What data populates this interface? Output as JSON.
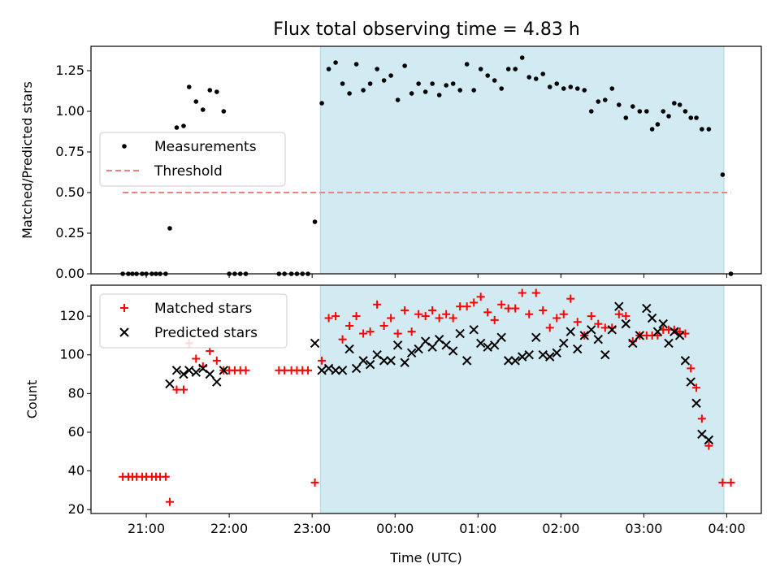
{
  "title": "Flux total observing time = 4.83 h",
  "colors": {
    "highlight": "#add8e6",
    "threshold": "#f08080",
    "measurement": "#000000",
    "matched": "#ff0000",
    "predicted": "#000000"
  },
  "chart_data": [
    {
      "type": "scatter",
      "ylabel": "Matched/Predicted stars",
      "ylim": [
        0,
        1.4
      ],
      "yticks": [
        0,
        0.25,
        0.5,
        0.75,
        1.0,
        1.25
      ],
      "ytick_labels": [
        "0.00",
        "0.25",
        "0.50",
        "0.75",
        "1.00",
        "1.25"
      ],
      "xlim": [
        "20:20",
        "04:25"
      ],
      "highlight_span": [
        "23:06",
        "03:58"
      ],
      "legend": {
        "position": "center-left",
        "entries": [
          {
            "label": "Measurements",
            "marker": "dot"
          },
          {
            "label": "Threshold",
            "marker": "dashed-line"
          }
        ]
      },
      "threshold": {
        "y": 0.5,
        "x_start": "20:43",
        "x_end": "04:03"
      },
      "measurements": [
        [
          "20:43",
          0.0
        ],
        [
          "20:47",
          0.0
        ],
        [
          "20:50",
          0.0
        ],
        [
          "20:53",
          0.0
        ],
        [
          "20:57",
          0.0
        ],
        [
          "21:00",
          0.0
        ],
        [
          "21:04",
          0.0
        ],
        [
          "21:07",
          0.0
        ],
        [
          "21:10",
          0.0
        ],
        [
          "21:14",
          0.0
        ],
        [
          "21:17",
          0.28
        ],
        [
          "21:22",
          0.9
        ],
        [
          "21:27",
          0.91
        ],
        [
          "21:31",
          1.15
        ],
        [
          "21:36",
          1.06
        ],
        [
          "21:41",
          1.01
        ],
        [
          "21:46",
          1.13
        ],
        [
          "21:51",
          1.12
        ],
        [
          "21:56",
          1.0
        ],
        [
          "22:00",
          0.0
        ],
        [
          "22:04",
          0.0
        ],
        [
          "22:08",
          0.0
        ],
        [
          "22:12",
          0.0
        ],
        [
          "22:36",
          0.0
        ],
        [
          "22:40",
          0.0
        ],
        [
          "22:45",
          0.0
        ],
        [
          "22:49",
          0.0
        ],
        [
          "22:53",
          0.0
        ],
        [
          "22:57",
          0.0
        ],
        [
          "23:02",
          0.32
        ],
        [
          "23:07",
          1.05
        ],
        [
          "23:12",
          1.26
        ],
        [
          "23:17",
          1.3
        ],
        [
          "23:22",
          1.17
        ],
        [
          "23:27",
          1.11
        ],
        [
          "23:32",
          1.29
        ],
        [
          "23:37",
          1.13
        ],
        [
          "23:42",
          1.17
        ],
        [
          "23:47",
          1.26
        ],
        [
          "23:52",
          1.19
        ],
        [
          "23:57",
          1.22
        ],
        [
          "00:02",
          1.07
        ],
        [
          "00:07",
          1.28
        ],
        [
          "00:12",
          1.11
        ],
        [
          "00:17",
          1.17
        ],
        [
          "00:22",
          1.12
        ],
        [
          "00:27",
          1.17
        ],
        [
          "00:32",
          1.1
        ],
        [
          "00:37",
          1.16
        ],
        [
          "00:42",
          1.17
        ],
        [
          "00:47",
          1.13
        ],
        [
          "00:52",
          1.29
        ],
        [
          "00:57",
          1.13
        ],
        [
          "01:02",
          1.26
        ],
        [
          "01:07",
          1.22
        ],
        [
          "01:12",
          1.19
        ],
        [
          "01:17",
          1.14
        ],
        [
          "01:22",
          1.26
        ],
        [
          "01:27",
          1.26
        ],
        [
          "01:32",
          1.33
        ],
        [
          "01:37",
          1.21
        ],
        [
          "01:42",
          1.2
        ],
        [
          "01:47",
          1.23
        ],
        [
          "01:52",
          1.15
        ],
        [
          "01:57",
          1.17
        ],
        [
          "02:02",
          1.14
        ],
        [
          "02:07",
          1.15
        ],
        [
          "02:12",
          1.14
        ],
        [
          "02:17",
          1.13
        ],
        [
          "02:22",
          1.0
        ],
        [
          "02:27",
          1.06
        ],
        [
          "02:32",
          1.07
        ],
        [
          "02:37",
          1.14
        ],
        [
          "02:42",
          1.04
        ],
        [
          "02:47",
          0.96
        ],
        [
          "02:52",
          1.03
        ],
        [
          "02:57",
          1.0
        ],
        [
          "03:02",
          1.0
        ],
        [
          "03:06",
          0.89
        ],
        [
          "03:10",
          0.92
        ],
        [
          "03:14",
          1.0
        ],
        [
          "03:18",
          0.97
        ],
        [
          "03:22",
          1.05
        ],
        [
          "03:26",
          1.04
        ],
        [
          "03:30",
          1.0
        ],
        [
          "03:34",
          0.96
        ],
        [
          "03:38",
          0.96
        ],
        [
          "03:42",
          0.89
        ],
        [
          "03:47",
          0.89
        ],
        [
          "03:57",
          0.61
        ],
        [
          "04:03",
          0.0
        ]
      ]
    },
    {
      "type": "scatter",
      "xlabel": "Time (UTC)",
      "ylabel": "Count",
      "ylim": [
        18,
        136
      ],
      "yticks": [
        20,
        40,
        60,
        80,
        100,
        120
      ],
      "ytick_labels": [
        "20",
        "40",
        "60",
        "80",
        "100",
        "120"
      ],
      "xlim": [
        "20:20",
        "04:25"
      ],
      "xticks": [
        "21:00",
        "22:00",
        "23:00",
        "00:00",
        "01:00",
        "02:00",
        "03:00",
        "04:00"
      ],
      "highlight_span": [
        "23:06",
        "03:58"
      ],
      "legend": {
        "position": "top-left",
        "entries": [
          {
            "label": "Matched stars",
            "marker": "plus"
          },
          {
            "label": "Predicted stars",
            "marker": "x"
          }
        ]
      },
      "series": [
        {
          "name": "Matched stars",
          "marker": "plus",
          "points": [
            [
              "20:43",
              37
            ],
            [
              "20:47",
              37
            ],
            [
              "20:50",
              37
            ],
            [
              "20:53",
              37
            ],
            [
              "20:57",
              37
            ],
            [
              "21:00",
              37
            ],
            [
              "21:04",
              37
            ],
            [
              "21:07",
              37
            ],
            [
              "21:10",
              37
            ],
            [
              "21:14",
              37
            ],
            [
              "21:17",
              24
            ],
            [
              "21:22",
              82
            ],
            [
              "21:27",
              82
            ],
            [
              "21:31",
              106
            ],
            [
              "21:36",
              98
            ],
            [
              "21:41",
              94
            ],
            [
              "21:46",
              102
            ],
            [
              "21:51",
              97
            ],
            [
              "21:56",
              92
            ],
            [
              "22:00",
              92
            ],
            [
              "22:04",
              92
            ],
            [
              "22:08",
              92
            ],
            [
              "22:12",
              92
            ],
            [
              "22:36",
              92
            ],
            [
              "22:40",
              92
            ],
            [
              "22:45",
              92
            ],
            [
              "22:49",
              92
            ],
            [
              "22:53",
              92
            ],
            [
              "22:57",
              92
            ],
            [
              "23:02",
              34
            ],
            [
              "23:07",
              97
            ],
            [
              "23:12",
              119
            ],
            [
              "23:17",
              120
            ],
            [
              "23:22",
              108
            ],
            [
              "23:27",
              115
            ],
            [
              "23:32",
              120
            ],
            [
              "23:37",
              111
            ],
            [
              "23:42",
              112
            ],
            [
              "23:47",
              126
            ],
            [
              "23:52",
              115
            ],
            [
              "23:57",
              119
            ],
            [
              "00:02",
              111
            ],
            [
              "00:07",
              123
            ],
            [
              "00:12",
              112
            ],
            [
              "00:17",
              121
            ],
            [
              "00:22",
              120
            ],
            [
              "00:27",
              123
            ],
            [
              "00:32",
              119
            ],
            [
              "00:37",
              121
            ],
            [
              "00:42",
              119
            ],
            [
              "00:47",
              125
            ],
            [
              "00:52",
              125
            ],
            [
              "00:57",
              127
            ],
            [
              "01:02",
              130
            ],
            [
              "01:07",
              122
            ],
            [
              "01:12",
              118
            ],
            [
              "01:17",
              126
            ],
            [
              "01:22",
              124
            ],
            [
              "01:27",
              124
            ],
            [
              "01:32",
              132
            ],
            [
              "01:37",
              121
            ],
            [
              "01:42",
              132
            ],
            [
              "01:47",
              123
            ],
            [
              "01:52",
              114
            ],
            [
              "01:57",
              119
            ],
            [
              "02:02",
              121
            ],
            [
              "02:07",
              129
            ],
            [
              "02:12",
              117
            ],
            [
              "02:17",
              110
            ],
            [
              "02:22",
              120
            ],
            [
              "02:27",
              116
            ],
            [
              "02:32",
              114
            ],
            [
              "02:37",
              114
            ],
            [
              "02:42",
              121
            ],
            [
              "02:47",
              120
            ],
            [
              "02:52",
              107
            ],
            [
              "02:57",
              110
            ],
            [
              "03:02",
              110
            ],
            [
              "03:06",
              110
            ],
            [
              "03:10",
              110
            ],
            [
              "03:14",
              113
            ],
            [
              "03:18",
              113
            ],
            [
              "03:22",
              113
            ],
            [
              "03:26",
              112
            ],
            [
              "03:30",
              111
            ],
            [
              "03:34",
              93
            ],
            [
              "03:38",
              83
            ],
            [
              "03:42",
              67
            ],
            [
              "03:47",
              53
            ],
            [
              "03:57",
              34
            ],
            [
              "04:03",
              34
            ]
          ]
        },
        {
          "name": "Predicted stars",
          "marker": "x",
          "points": [
            [
              "21:17",
              85
            ],
            [
              "21:22",
              92
            ],
            [
              "21:27",
              90
            ],
            [
              "21:31",
              92
            ],
            [
              "21:36",
              91
            ],
            [
              "21:41",
              93
            ],
            [
              "21:46",
              90
            ],
            [
              "21:51",
              86
            ],
            [
              "21:56",
              92
            ],
            [
              "23:02",
              106
            ],
            [
              "23:07",
              92
            ],
            [
              "23:12",
              93
            ],
            [
              "23:17",
              92
            ],
            [
              "23:22",
              92
            ],
            [
              "23:27",
              103
            ],
            [
              "23:32",
              93
            ],
            [
              "23:37",
              97
            ],
            [
              "23:42",
              95
            ],
            [
              "23:47",
              100
            ],
            [
              "23:52",
              97
            ],
            [
              "23:57",
              97
            ],
            [
              "00:02",
              105
            ],
            [
              "00:07",
              96
            ],
            [
              "00:12",
              101
            ],
            [
              "00:17",
              103
            ],
            [
              "00:22",
              107
            ],
            [
              "00:27",
              104
            ],
            [
              "00:32",
              108
            ],
            [
              "00:37",
              105
            ],
            [
              "00:42",
              102
            ],
            [
              "00:47",
              111
            ],
            [
              "00:52",
              97
            ],
            [
              "00:57",
              113
            ],
            [
              "01:02",
              106
            ],
            [
              "01:07",
              104
            ],
            [
              "01:12",
              105
            ],
            [
              "01:17",
              109
            ],
            [
              "01:22",
              97
            ],
            [
              "01:27",
              97
            ],
            [
              "01:32",
              99
            ],
            [
              "01:37",
              100
            ],
            [
              "01:42",
              109
            ],
            [
              "01:47",
              100
            ],
            [
              "01:52",
              99
            ],
            [
              "01:57",
              101
            ],
            [
              "02:02",
              106
            ],
            [
              "02:07",
              112
            ],
            [
              "02:12",
              103
            ],
            [
              "02:17",
              110
            ],
            [
              "02:22",
              113
            ],
            [
              "02:27",
              108
            ],
            [
              "02:32",
              100
            ],
            [
              "02:37",
              113
            ],
            [
              "02:42",
              125
            ],
            [
              "02:47",
              116
            ],
            [
              "02:52",
              106
            ],
            [
              "02:57",
              110
            ],
            [
              "03:02",
              124
            ],
            [
              "03:06",
              119
            ],
            [
              "03:10",
              112
            ],
            [
              "03:14",
              116
            ],
            [
              "03:18",
              106
            ],
            [
              "03:22",
              112
            ],
            [
              "03:26",
              110
            ],
            [
              "03:30",
              97
            ],
            [
              "03:34",
              86
            ],
            [
              "03:38",
              75
            ],
            [
              "03:42",
              59
            ],
            [
              "03:47",
              56
            ]
          ]
        }
      ]
    }
  ]
}
